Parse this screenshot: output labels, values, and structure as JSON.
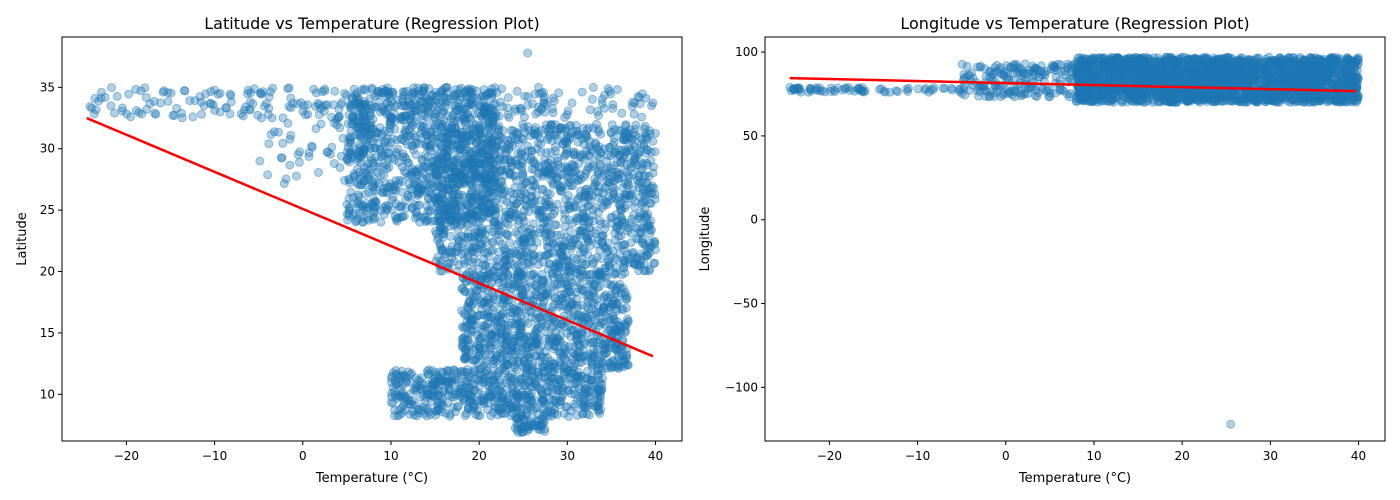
{
  "chart_data": [
    {
      "type": "scatter",
      "title": "Latitude vs Temperature (Regression Plot)",
      "xlabel": "Temperature (°C)",
      "ylabel": "Latitude",
      "xlim": [
        -27.3,
        43.0
      ],
      "ylim": [
        6.2,
        39.1
      ],
      "xticks": [
        -20,
        -10,
        0,
        10,
        20,
        30,
        40
      ],
      "yticks": [
        10,
        15,
        20,
        25,
        30,
        35
      ],
      "grid": false,
      "colors": {
        "points": "#1f77b4",
        "regression": "#ff0000"
      },
      "point_alpha": 0.35,
      "regression_line": {
        "x": [
          -24.5,
          39.7
        ],
        "y": [
          32.5,
          13.1
        ]
      },
      "point_clusters": [
        {
          "x_range": [
            -24.5,
            40.0
          ],
          "y_range": [
            32.5,
            35.0
          ],
          "n": 280
        },
        {
          "x_range": [
            -5.0,
            8.0
          ],
          "y_range": [
            27.0,
            33.5
          ],
          "n": 70
        },
        {
          "x_range": [
            5.0,
            22.0
          ],
          "y_range": [
            24.0,
            35.0
          ],
          "n": 900
        },
        {
          "x_range": [
            15.0,
            40.0
          ],
          "y_range": [
            20.0,
            32.0
          ],
          "n": 1400
        },
        {
          "x_range": [
            18.0,
            37.0
          ],
          "y_range": [
            12.0,
            20.0
          ],
          "n": 900
        },
        {
          "x_range": [
            10.0,
            34.0
          ],
          "y_range": [
            8.2,
            12.0
          ],
          "n": 600
        },
        {
          "x_range": [
            24.0,
            27.5
          ],
          "y_range": [
            6.9,
            8.2
          ],
          "n": 50
        }
      ],
      "outliers": [
        {
          "x": 25.5,
          "y": 37.8
        }
      ]
    },
    {
      "type": "scatter",
      "title": "Longitude vs Temperature (Regression Plot)",
      "xlabel": "Temperature (°C)",
      "ylabel": "Longitude",
      "xlim": [
        -27.3,
        43.0
      ],
      "ylim": [
        -132,
        109
      ],
      "xticks": [
        -20,
        -10,
        0,
        10,
        20,
        30,
        40
      ],
      "yticks": [
        -100,
        -50,
        0,
        50,
        100
      ],
      "grid": false,
      "colors": {
        "points": "#1f77b4",
        "regression": "#ff0000"
      },
      "point_alpha": 0.35,
      "regression_line": {
        "x": [
          -24.5,
          39.7
        ],
        "y": [
          84.5,
          76.7
        ]
      },
      "point_clusters": [
        {
          "x_range": [
            -24.5,
            -5.0
          ],
          "y_range": [
            76.0,
            79.0
          ],
          "n": 70
        },
        {
          "x_range": [
            -5.0,
            10.0
          ],
          "y_range": [
            73.0,
            93.0
          ],
          "n": 220
        },
        {
          "x_range": [
            8.0,
            40.0
          ],
          "y_range": [
            70.0,
            97.0
          ],
          "n": 2600
        }
      ],
      "outliers": [
        {
          "x": 25.5,
          "y": -122
        }
      ]
    }
  ]
}
